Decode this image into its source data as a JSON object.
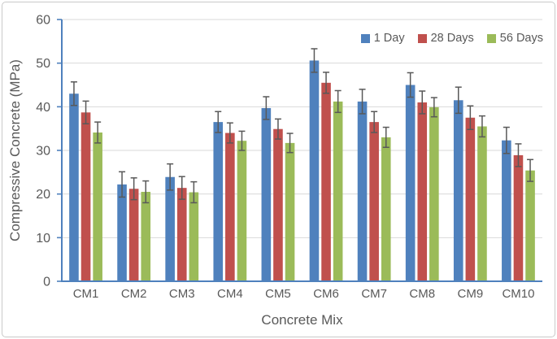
{
  "chart_data": {
    "type": "bar",
    "title": "",
    "xlabel": "Concrete Mix",
    "ylabel": "Compressive Concrete (MPa)",
    "ylim": [
      0,
      60
    ],
    "ytick_interval": 10,
    "ytick_labels": [
      "0",
      "10",
      "20",
      "30",
      "40",
      "50",
      "60"
    ],
    "grid": true,
    "legend_position": "top-right-inside",
    "error_bars": true,
    "categories": [
      "CM1",
      "CM2",
      "CM3",
      "CM4",
      "CM5",
      "CM6",
      "CM7",
      "CM8",
      "CM9",
      "CM10"
    ],
    "series": [
      {
        "name": "1 Day",
        "color": "#4F81BD",
        "values": [
          43.0,
          22.2,
          23.9,
          36.5,
          39.7,
          50.6,
          41.2,
          45.0,
          41.5,
          32.3
        ],
        "errors": [
          2.7,
          2.9,
          3.0,
          2.4,
          2.6,
          2.7,
          2.8,
          2.8,
          3.0,
          3.0
        ]
      },
      {
        "name": "28 Days",
        "color": "#C0504D",
        "values": [
          38.7,
          21.2,
          21.4,
          34.0,
          34.9,
          45.5,
          36.5,
          41.0,
          37.5,
          28.9
        ],
        "errors": [
          2.6,
          2.5,
          2.6,
          2.3,
          2.3,
          2.4,
          2.4,
          2.6,
          2.7,
          2.6
        ]
      },
      {
        "name": "56 Days",
        "color": "#9BBB59",
        "values": [
          34.1,
          20.5,
          20.4,
          32.2,
          31.7,
          41.2,
          33.0,
          39.9,
          35.5,
          25.4
        ],
        "errors": [
          2.4,
          2.5,
          2.4,
          2.2,
          2.2,
          2.5,
          2.3,
          2.2,
          2.4,
          2.5
        ]
      }
    ],
    "colors": {
      "axis": "#4F81BD",
      "gridline": "#D9D9D9",
      "error_bar": "#595959",
      "text": "#595959",
      "frame_border": "#C9C9C9",
      "background": "#FFFFFF"
    }
  }
}
